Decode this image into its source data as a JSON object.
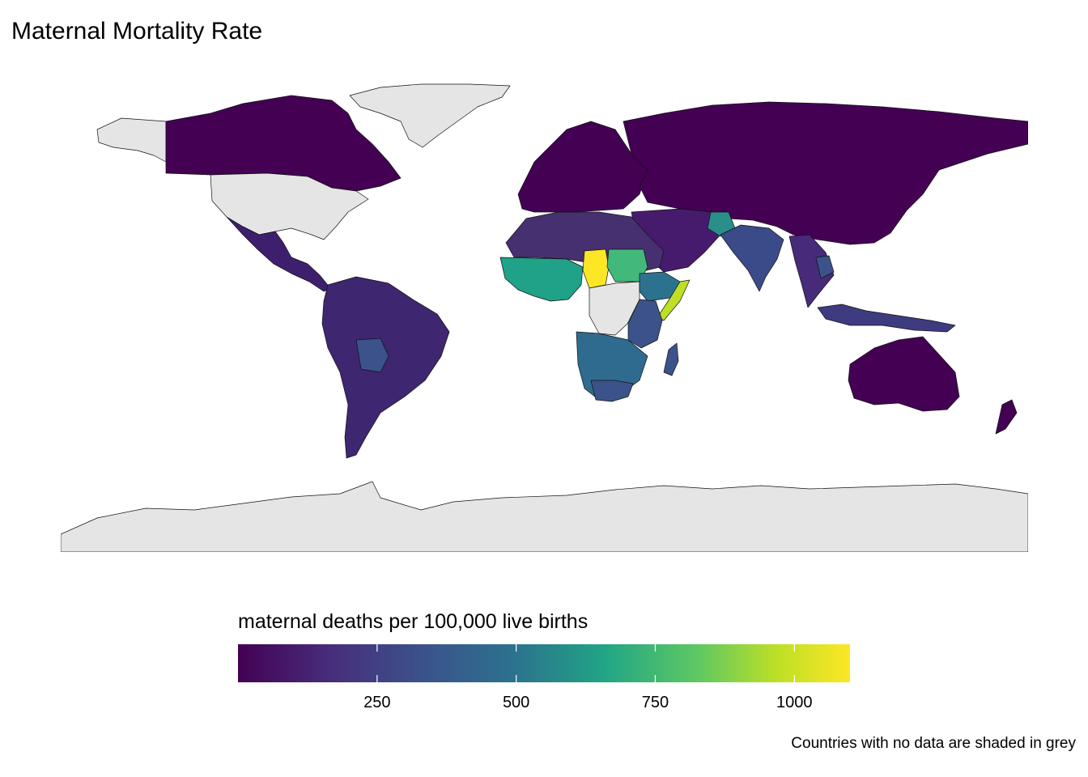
{
  "title": "Maternal Mortality Rate",
  "legend": {
    "title": "maternal deaths per 100,000 live births",
    "min": 0,
    "max": 1100,
    "ticks": [
      250,
      500,
      750,
      1000
    ],
    "palette": [
      "#440154",
      "#3b528b",
      "#21908c",
      "#22a884",
      "#5dc863",
      "#fde725"
    ]
  },
  "no_data_color": "#e5e5e5",
  "caption": "Countries with no data are shaded in grey"
}
